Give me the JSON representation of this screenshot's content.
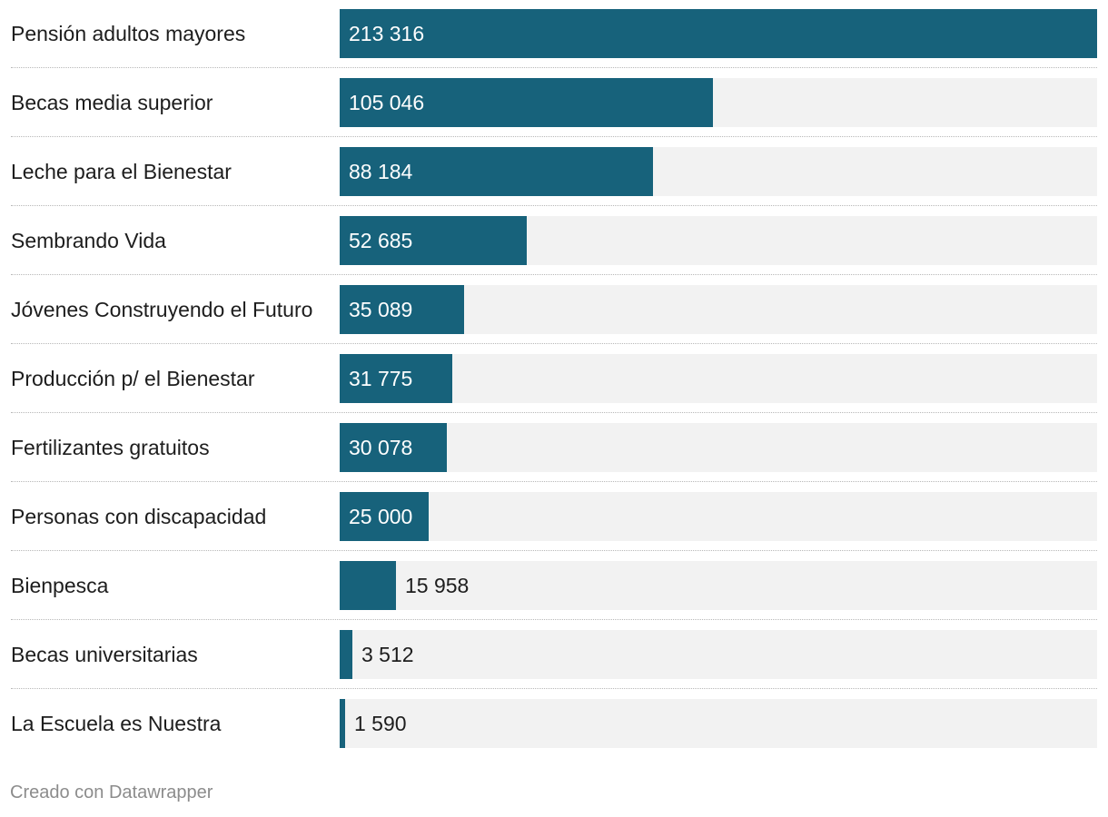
{
  "chart_data": {
    "type": "bar",
    "orientation": "horizontal",
    "categories": [
      "Pensión adultos mayores",
      "Becas media superior",
      "Leche para el Bienestar",
      "Sembrando Vida",
      "Jóvenes Construyendo el Futuro",
      "Producción p/ el Bienestar",
      "Fertilizantes gratuitos",
      "Personas con discapacidad",
      "Bienpesca",
      "Becas universitarias",
      "La Escuela es Nuestra"
    ],
    "values": [
      213316,
      105046,
      88184,
      52685,
      35089,
      31775,
      30078,
      25000,
      15958,
      3512,
      1590
    ],
    "value_labels": [
      "213 316",
      "105 046",
      "88 184",
      "52 685",
      "35 089",
      "31 775",
      "30 078",
      "25 000",
      "15 958",
      "3 512",
      "1 590"
    ],
    "xlim": [
      0,
      213316
    ],
    "title": "",
    "xlabel": "",
    "ylabel": "",
    "grid": false,
    "colors": {
      "bar": "#17627b",
      "track": "#f2f2f2",
      "label_inside": "#ffffff",
      "label_outside": "#1d1d1d"
    }
  },
  "footer": {
    "credit": "Creado con Datawrapper"
  }
}
